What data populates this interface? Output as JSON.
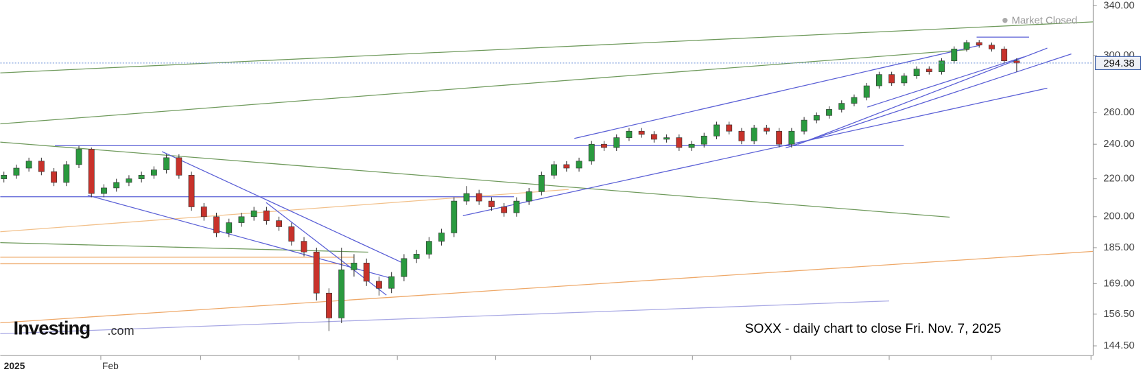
{
  "chart_data": {
    "type": "candlestick",
    "title": "SOXX - daily chart to close Fri. Nov. 7, 2025",
    "status": "Market Closed",
    "watermark": "Investing",
    "watermark_suffix": ".com",
    "x_axis_labels": [
      "2025",
      "Feb"
    ],
    "log_scale": true,
    "grid": false,
    "up_color": "#2a9a3f",
    "down_color": "#c8322b",
    "last_price": 294.38,
    "ylim": [
      141,
      345
    ],
    "yticks": [
      {
        "value": 144.5,
        "label": "144.50"
      },
      {
        "value": 156.5,
        "label": "156.50"
      },
      {
        "value": 169,
        "label": "169.00"
      },
      {
        "value": 185,
        "label": "185.00"
      },
      {
        "value": 200,
        "label": "200.00"
      },
      {
        "value": 220,
        "label": "220.00"
      },
      {
        "value": 240,
        "label": "240.00"
      },
      {
        "value": 260,
        "label": "260.00"
      },
      {
        "value": 300,
        "label": "300.00"
      },
      {
        "value": 340,
        "label": "340.00"
      }
    ],
    "open": [
      220,
      222,
      226,
      230,
      224,
      218,
      228,
      237,
      212,
      215,
      218,
      220,
      222,
      225,
      232,
      222,
      205,
      200,
      192,
      197,
      200,
      203,
      198,
      195,
      188,
      183,
      165,
      155,
      175,
      178,
      170,
      167,
      172,
      180,
      182,
      188,
      192,
      208,
      212,
      208,
      205,
      202,
      208,
      213,
      222,
      228,
      226,
      230,
      240,
      238,
      244,
      248,
      246,
      243,
      244,
      238,
      240,
      245,
      252,
      248,
      242,
      250,
      248,
      240,
      248,
      255,
      258,
      262,
      266,
      270,
      278,
      286,
      280,
      285,
      290,
      288,
      296,
      305,
      310,
      308,
      305,
      296
    ],
    "high": [
      224,
      228,
      232,
      232,
      226,
      230,
      239,
      238,
      217,
      220,
      222,
      224,
      227,
      234,
      234,
      224,
      207,
      202,
      199,
      202,
      205,
      205,
      200,
      197,
      190,
      185,
      167,
      185,
      182,
      180,
      172,
      174,
      182,
      184,
      190,
      194,
      210,
      216,
      214,
      210,
      207,
      210,
      215,
      224,
      230,
      230,
      232,
      242,
      242,
      246,
      250,
      250,
      248,
      246,
      246,
      242,
      247,
      254,
      254,
      250,
      252,
      252,
      250,
      250,
      257,
      260,
      264,
      268,
      272,
      280,
      288,
      288,
      287,
      292,
      292,
      298,
      307,
      312,
      312,
      310,
      307,
      298
    ],
    "low": [
      218,
      220,
      224,
      222,
      216,
      216,
      226,
      210,
      210,
      213,
      216,
      218,
      220,
      223,
      220,
      203,
      198,
      190,
      190,
      195,
      198,
      196,
      193,
      186,
      181,
      162,
      150,
      153,
      172,
      168,
      164,
      165,
      170,
      178,
      180,
      186,
      190,
      206,
      206,
      203,
      200,
      200,
      206,
      211,
      220,
      224,
      224,
      228,
      236,
      236,
      242,
      244,
      241,
      241,
      236,
      236,
      238,
      243,
      246,
      240,
      240,
      246,
      238,
      238,
      246,
      253,
      256,
      260,
      264,
      268,
      276,
      278,
      278,
      283,
      286,
      286,
      294,
      303,
      306,
      303,
      294,
      288
    ],
    "close": [
      222,
      226,
      230,
      224,
      218,
      228,
      237,
      212,
      215,
      218,
      220,
      222,
      225,
      232,
      222,
      205,
      200,
      192,
      197,
      200,
      203,
      198,
      195,
      188,
      183,
      165,
      155,
      175,
      178,
      170,
      167,
      172,
      180,
      182,
      188,
      192,
      208,
      212,
      208,
      205,
      202,
      208,
      213,
      222,
      228,
      226,
      230,
      240,
      238,
      244,
      248,
      246,
      243,
      244,
      238,
      240,
      245,
      252,
      248,
      242,
      250,
      248,
      240,
      248,
      255,
      258,
      262,
      266,
      270,
      278,
      286,
      280,
      285,
      290,
      288,
      296,
      305,
      310,
      308,
      305,
      296,
      294.38
    ]
  }
}
